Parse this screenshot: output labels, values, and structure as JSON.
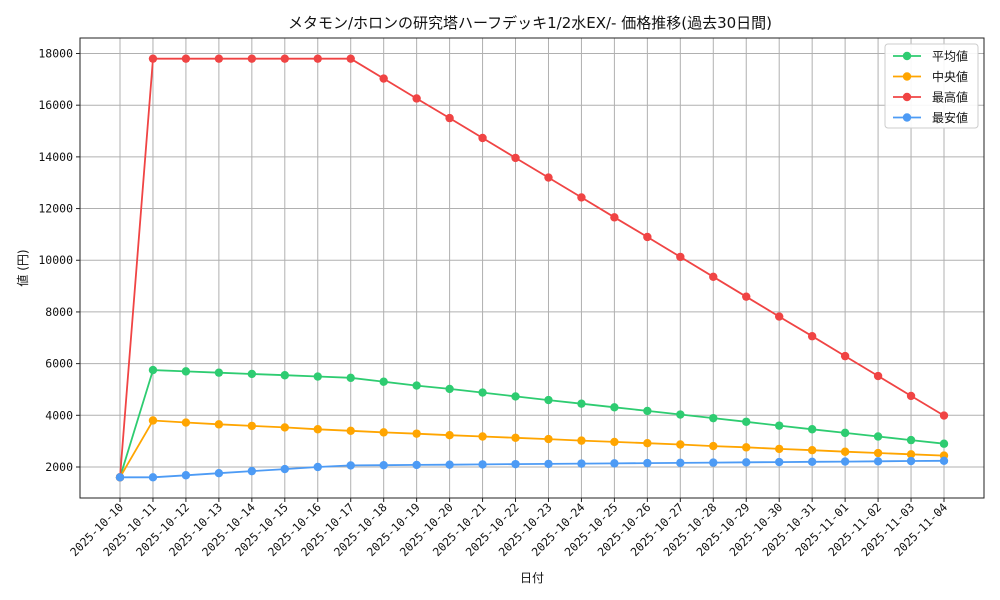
{
  "chart_data": {
    "type": "line",
    "title": "メタモン/ホロンの研究塔ハーフデッキ1/2水EX/- 価格推移(過去30日間)",
    "xlabel": "日付",
    "ylabel": "値 (円)",
    "ylim": [
      800,
      18600
    ],
    "yticks": [
      2000,
      4000,
      6000,
      8000,
      10000,
      12000,
      14000,
      16000,
      18000
    ],
    "grid": true,
    "legend_position": "top-right",
    "categories": [
      "2025-10-10",
      "2025-10-11",
      "2025-10-12",
      "2025-10-13",
      "2025-10-14",
      "2025-10-15",
      "2025-10-16",
      "2025-10-17",
      "2025-10-18",
      "2025-10-19",
      "2025-10-20",
      "2025-10-21",
      "2025-10-22",
      "2025-10-23",
      "2025-10-24",
      "2025-10-25",
      "2025-10-26",
      "2025-10-27",
      "2025-10-28",
      "2025-10-29",
      "2025-10-30",
      "2025-10-31",
      "2025-11-01",
      "2025-11-02",
      "2025-11-03",
      "2025-11-04"
    ],
    "series": [
      {
        "name": "平均値",
        "color": "#2ecc71",
        "values": [
          1600,
          5750,
          5700,
          5650,
          5600,
          5550,
          5500,
          5450,
          5300,
          5150,
          5020,
          4880,
          4730,
          4590,
          4450,
          4310,
          4170,
          4030,
          3890,
          3750,
          3600,
          3460,
          3320,
          3180,
          3040,
          2900
        ]
      },
      {
        "name": "中央値",
        "color": "#ffa500",
        "values": [
          1600,
          3800,
          3720,
          3650,
          3590,
          3530,
          3460,
          3400,
          3340,
          3290,
          3230,
          3180,
          3130,
          3080,
          3020,
          2970,
          2920,
          2870,
          2810,
          2760,
          2700,
          2650,
          2590,
          2540,
          2490,
          2440
        ]
      },
      {
        "name": "最高値",
        "color": "#f04444",
        "values": [
          1600,
          17800,
          17800,
          17800,
          17800,
          17800,
          17800,
          17800,
          17030,
          16260,
          15500,
          14730,
          13960,
          13200,
          12430,
          11660,
          10900,
          10130,
          9360,
          8590,
          7820,
          7060,
          6290,
          5520,
          4750,
          3990
        ]
      },
      {
        "name": "最安値",
        "color": "#4d9bf5",
        "values": [
          1600,
          1600,
          1680,
          1760,
          1840,
          1920,
          2000,
          2060,
          2070,
          2080,
          2090,
          2100,
          2110,
          2120,
          2130,
          2140,
          2150,
          2160,
          2170,
          2180,
          2190,
          2200,
          2210,
          2220,
          2230,
          2240
        ]
      }
    ]
  }
}
